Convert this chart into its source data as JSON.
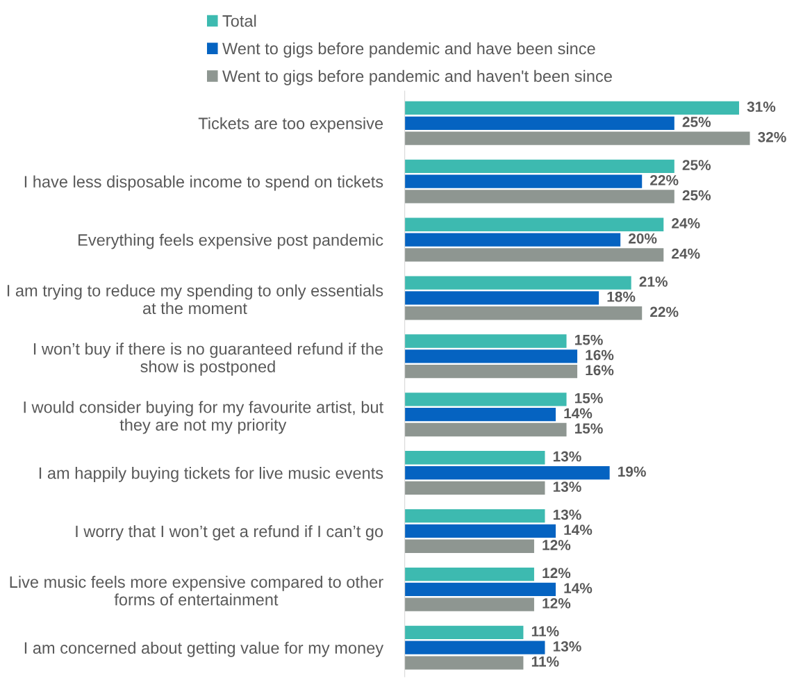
{
  "chart_data": {
    "type": "bar",
    "orientation": "horizontal",
    "legend": "top",
    "grid": false,
    "categories": [
      "Tickets are too expensive",
      "I have less disposable income to spend on tickets",
      "Everything feels expensive post pandemic",
      "I am trying to reduce my spending to only essentials at the moment",
      "I won’t buy if there is no guaranteed refund if the show is postponed",
      "I would consider buying for my favourite artist, but they are not my priority",
      "I am happily buying tickets for live music events",
      "I worry that I won’t get a refund if I can’t go",
      "Live music feels more expensive compared to other forms of entertainment",
      "I am concerned about getting value for my money"
    ],
    "series": [
      {
        "name": "Total",
        "color": "#3dbab0",
        "values": [
          31,
          25,
          24,
          21,
          15,
          15,
          13,
          13,
          12,
          11
        ],
        "value_labels": [
          "31%",
          "25%",
          "24%",
          "21%",
          "15%",
          "15%",
          "13%",
          "13%",
          "12%",
          "11%"
        ]
      },
      {
        "name": "Went to gigs before pandemic and have been since",
        "color": "#0563c1",
        "values": [
          25,
          22,
          20,
          18,
          16,
          14,
          19,
          14,
          14,
          13
        ],
        "value_labels": [
          "25%",
          "22%",
          "20%",
          "18%",
          "16%",
          "14%",
          "19%",
          "14%",
          "14%",
          "13%"
        ]
      },
      {
        "name": "Went to gigs before pandemic and haven't been since",
        "color": "#8e9691",
        "values": [
          32,
          25,
          24,
          22,
          16,
          15,
          13,
          12,
          12,
          11
        ],
        "value_labels": [
          "32%",
          "25%",
          "24%",
          "22%",
          "16%",
          "15%",
          "13%",
          "12%",
          "12%",
          "11%"
        ]
      }
    ]
  }
}
